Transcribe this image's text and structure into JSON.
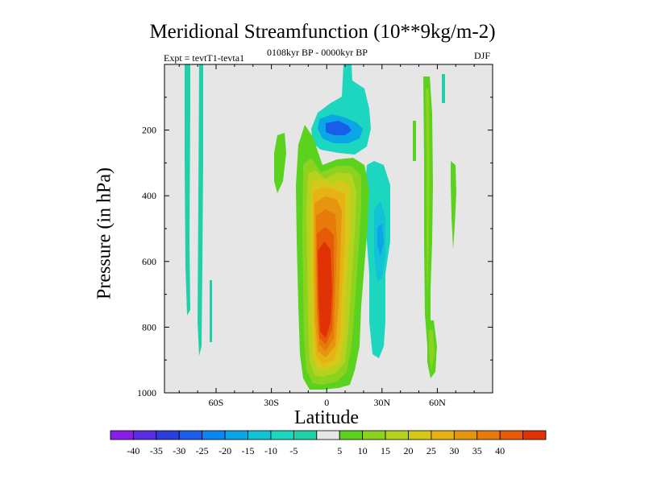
{
  "chart_data": {
    "type": "heatmap",
    "title": "Meridional Streamfunction (10**9kg/m-2)",
    "left_subtitle": "Expt = tevtT1-tevta1",
    "center_subtitle": "0108kyr BP - 0000kyr BP",
    "right_subtitle": "DJF",
    "xlabel": "Latitude",
    "ylabel": "Pressure (in hPa)",
    "x_ticks": [
      {
        "value": -60,
        "label": "60S"
      },
      {
        "value": -30,
        "label": "30S"
      },
      {
        "value": 0,
        "label": "0"
      },
      {
        "value": 30,
        "label": "30N"
      },
      {
        "value": 60,
        "label": "60N"
      }
    ],
    "y_ticks": [
      {
        "value": 200,
        "label": "200"
      },
      {
        "value": 400,
        "label": "400"
      },
      {
        "value": 600,
        "label": "600"
      },
      {
        "value": 800,
        "label": "800"
      },
      {
        "value": 1000,
        "label": "1000"
      }
    ],
    "xlim": [
      -88,
      90
    ],
    "ylim": [
      1000,
      0
    ],
    "colorbar_levels": [
      "-40",
      "-35",
      "-30",
      "-25",
      "-20",
      "-15",
      "-10",
      "-5",
      "5",
      "10",
      "15",
      "20",
      "25",
      "30",
      "35",
      "40"
    ],
    "colorbar_colors": [
      "#8a1ee6",
      "#5a2ee0",
      "#2a3ed8",
      "#1a5ee8",
      "#0a86f0",
      "#0aa6e6",
      "#12c3d6",
      "#1dd6c0",
      "#20d0a8",
      "#e6e6e6",
      "#5ad21e",
      "#8cd21e",
      "#b4d21e",
      "#d6c81a",
      "#e6b214",
      "#e6960e",
      "#e67a0a",
      "#e65a08",
      "#e03204"
    ],
    "features": [
      {
        "name": "tropical-positive-cell",
        "level_max": 40,
        "lat_range": [
          -12,
          10
        ],
        "pressure_range": [
          280,
          990
        ]
      },
      {
        "name": "upper-negative-cell",
        "level_min": -20,
        "lat_range": [
          -5,
          12
        ],
        "pressure_range": [
          120,
          250
        ]
      },
      {
        "name": "subtropical-negative-band",
        "level_min": -10,
        "lat_range": [
          22,
          32
        ],
        "pressure_range": [
          230,
          890
        ]
      },
      {
        "name": "high-lat-south-negative",
        "level_min": -5,
        "lat_range": [
          -78,
          -68
        ],
        "pressure_range": [
          0,
          890
        ]
      },
      {
        "name": "high-lat-north-positive",
        "level_max": 5,
        "lat_range": [
          52,
          65
        ],
        "pressure_range": [
          120,
          960
        ]
      }
    ]
  }
}
